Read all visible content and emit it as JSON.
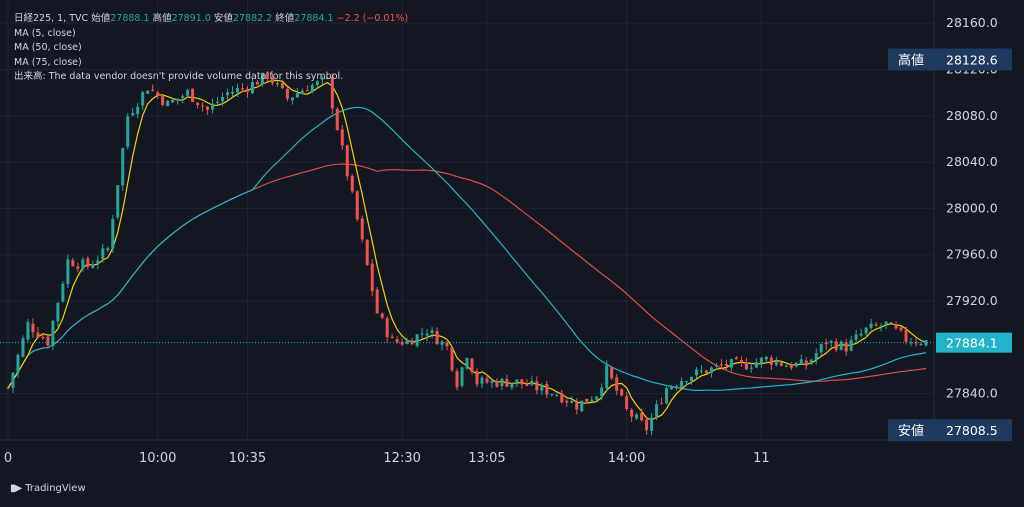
{
  "legend": {
    "symbol": "日経225, 1, TVC",
    "open_label": "始値",
    "open": "27888.1",
    "high_label": "高値",
    "high": "27891.0",
    "low_label": "安値",
    "low": "27882.2",
    "close_label": "終値",
    "close": "27884.1",
    "change": "−2.2 (−0.01%)",
    "ma5": "MA (5, close)",
    "ma50": "MA (50, close)",
    "ma75": "MA (75, close)",
    "volume_note": "出来高: The data vendor doesn't provide volume data for this symbol."
  },
  "footer": {
    "brand": "TradingView"
  },
  "colors": {
    "background": "#131722",
    "up": "#26a69a",
    "down": "#ef5350",
    "ma5": "#f5d300",
    "ma50": "#22b3c8",
    "ma75": "#e04a4a",
    "label_bg": "#1e3a5f",
    "last_price_bg": "#22b3c8"
  },
  "chart_data": {
    "type": "candlestick",
    "x_tick_labels": [
      "0",
      "10:00",
      "10:35",
      "12:30",
      "13:05",
      "14:00",
      "11"
    ],
    "y_tick_labels": [
      "28160.0",
      "28120.0",
      "28080.0",
      "28040.0",
      "28000.0",
      "27960.0",
      "27920.0",
      "27840.0"
    ],
    "ylim": [
      27800,
      28180
    ],
    "high_marker": {
      "label": "高値",
      "value": "28128.6"
    },
    "low_marker": {
      "label": "安値",
      "value": "27808.5"
    },
    "last_price": "27884.1",
    "price_path": [
      [
        0,
        27845
      ],
      [
        4,
        27900
      ],
      [
        8,
        27885
      ],
      [
        12,
        27955
      ],
      [
        16,
        27950
      ],
      [
        20,
        27965
      ],
      [
        24,
        28080
      ],
      [
        28,
        28105
      ],
      [
        32,
        28090
      ],
      [
        36,
        28100
      ],
      [
        40,
        28085
      ],
      [
        44,
        28100
      ],
      [
        48,
        28105
      ],
      [
        52,
        28115
      ],
      [
        56,
        28095
      ],
      [
        60,
        28105
      ],
      [
        64,
        28110
      ],
      [
        66,
        28070
      ],
      [
        70,
        27990
      ],
      [
        74,
        27910
      ],
      [
        77,
        27885
      ],
      [
        80,
        27885
      ],
      [
        84,
        27895
      ],
      [
        88,
        27880
      ],
      [
        90,
        27850
      ],
      [
        92,
        27875
      ],
      [
        94,
        27850
      ],
      [
        98,
        27850
      ],
      [
        102,
        27850
      ],
      [
        106,
        27845
      ],
      [
        110,
        27840
      ],
      [
        114,
        27830
      ],
      [
        118,
        27840
      ],
      [
        120,
        27860
      ],
      [
        124,
        27825
      ],
      [
        128,
        27810
      ],
      [
        132,
        27845
      ],
      [
        136,
        27855
      ],
      [
        140,
        27860
      ],
      [
        144,
        27865
      ],
      [
        148,
        27865
      ],
      [
        152,
        27870
      ],
      [
        156,
        27865
      ],
      [
        160,
        27865
      ],
      [
        164,
        27885
      ],
      [
        168,
        27880
      ],
      [
        172,
        27895
      ],
      [
        176,
        27900
      ],
      [
        180,
        27887
      ],
      [
        184,
        27885
      ]
    ]
  }
}
